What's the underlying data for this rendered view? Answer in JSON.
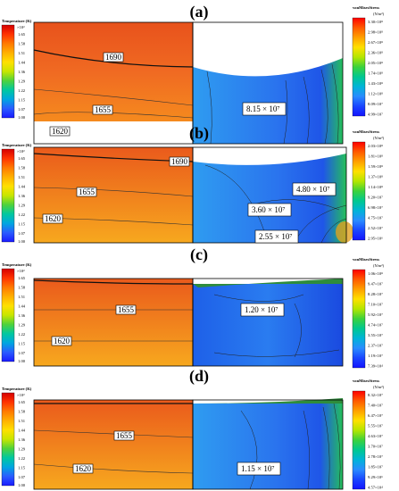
{
  "panels": [
    {
      "id": "a",
      "label": "(a)",
      "temperature_colorbar": {
        "title": "Temperature (K)",
        "multiplier": "×10³",
        "ticks": [
          "1.65",
          "1.58",
          "1.51",
          "1.44",
          "1.36",
          "1.29",
          "1.22",
          "1.15",
          "1.07",
          "1.00"
        ]
      },
      "stress_colorbar": {
        "title": "vonMisesStress",
        "unit": "(N/m²)",
        "ticks": [
          "3.30×10⁸",
          "2.98×10⁸",
          "2.67×10⁸",
          "2.36×10⁸",
          "2.05×10⁸",
          "1.74×10⁸",
          "1.43×10⁸",
          "1.12×10⁸",
          "8.09×10⁷",
          "4.99×10⁷"
        ]
      },
      "isotherm_labels": [
        "1690",
        "1655",
        "1620"
      ],
      "stress_labels": [
        "8.15 × 10⁷"
      ]
    },
    {
      "id": "b",
      "label": "(b)",
      "temperature_colorbar": {
        "title": "Temperature (K)",
        "multiplier": "×10³",
        "ticks": [
          "1.65",
          "1.58",
          "1.51",
          "1.44",
          "1.36",
          "1.29",
          "1.22",
          "1.15",
          "1.07",
          "1.00"
        ]
      },
      "stress_colorbar": {
        "title": "vonMisesStress",
        "unit": "(N/m²)",
        "ticks": [
          "2.03×10⁸",
          "1.81×10⁸",
          "1.59×10⁸",
          "1.37×10⁸",
          "1.14×10⁸",
          "9.20×10⁷",
          "6.98×10⁷",
          "4.75×10⁷",
          "2.52×10⁷",
          "2.95×10⁶"
        ]
      },
      "isotherm_labels": [
        "1690",
        "1655",
        "1620"
      ],
      "stress_labels": [
        "4.80 × 10⁷",
        "3.60 × 10⁷",
        "2.55 × 10⁷"
      ]
    },
    {
      "id": "c",
      "label": "(c)",
      "temperature_colorbar": {
        "title": "Temperature (K)",
        "multiplier": "×10³",
        "ticks": [
          "1.65",
          "1.58",
          "1.51",
          "1.44",
          "1.36",
          "1.29",
          "1.22",
          "1.15",
          "1.07",
          "1.00"
        ]
      },
      "stress_colorbar": {
        "title": "vonMisesStress",
        "unit": "(N/m²)",
        "ticks": [
          "1.06×10⁸",
          "9.47×10⁷",
          "8.28×10⁷",
          "7.10×10⁷",
          "5.92×10⁷",
          "4.74×10⁷",
          "3.55×10⁷",
          "2.37×10⁷",
          "1.19×10⁷",
          "7.39×10⁴"
        ]
      },
      "isotherm_labels": [
        "1655",
        "1620"
      ],
      "stress_labels": [
        "1.20 × 10⁷"
      ]
    },
    {
      "id": "d",
      "label": "(d)",
      "temperature_colorbar": {
        "title": "Temperature (K)",
        "multiplier": "×10³",
        "ticks": [
          "1.65",
          "1.58",
          "1.51",
          "1.44",
          "1.36",
          "1.29",
          "1.22",
          "1.15",
          "1.07",
          "1.00"
        ]
      },
      "stress_colorbar": {
        "title": "vonMisesStress",
        "unit": "(N/m²)",
        "ticks": [
          "8.32×10⁷",
          "7.40×10⁷",
          "6.47×10⁷",
          "5.55×10⁷",
          "4.63×10⁷",
          "3.70×10⁷",
          "2.78×10⁷",
          "1.85×10⁷",
          "9.29×10⁶",
          "4.57×10⁴"
        ]
      },
      "isotherm_labels": [
        "1655",
        "1620"
      ],
      "stress_labels": [
        "1.15 × 10⁷"
      ]
    }
  ],
  "colors": {
    "temperature_scale": [
      "#d50000",
      "#ff3300",
      "#ff7a00",
      "#ffb000",
      "#ffe000",
      "#c8e600",
      "#4fd23c",
      "#00c8a0",
      "#00a6e0",
      "#2a5cff",
      "#1a1aff"
    ],
    "stress_scale": [
      "#ff0000",
      "#ff5a00",
      "#ffa000",
      "#ffe000",
      "#b4e600",
      "#3cd23c",
      "#00c890",
      "#00b4d8",
      "#2a8cff",
      "#1a46ff",
      "#1414ff"
    ],
    "melt_region": "#ee6422",
    "solid_region": "#f38a1c",
    "stress_field": "#2f7cf0"
  }
}
